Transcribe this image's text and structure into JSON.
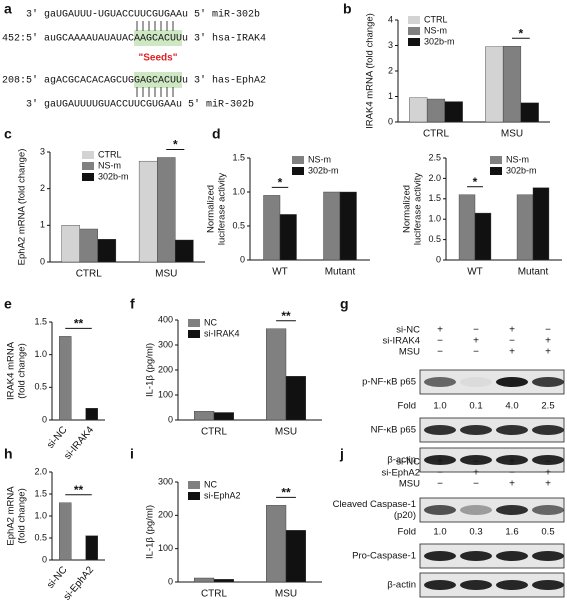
{
  "sequences": {
    "panel": "a",
    "lines": [
      "3' gaUGAUUU-UGUACCUUCGUGAAu 5' miR-302b",
      "452:5' auGCAAAAUAUAUACAAGCACUUu 3' hsa-IRAK4",
      "208:5' agACGCACACAGCUGGAGCACUUu 3' has-EphA2",
      "3' gaUGAUUUUGUACCUUCGUGAAu 5' miR-302b"
    ],
    "seed_label": "\"Seeds\""
  },
  "chart_data": [
    {
      "type": "bar",
      "panel": "b",
      "ylabel": [
        "IRAK4 mRNA (fold change)"
      ],
      "categories": [
        "CTRL",
        "MSU"
      ],
      "series": [
        {
          "name": "CTRL",
          "color": "#d3d3d3",
          "values": [
            0.95,
            2.95
          ]
        },
        {
          "name": "NS-m",
          "color": "#808080",
          "values": [
            0.9,
            2.97
          ]
        },
        {
          "name": "302b-m",
          "color": "#111111",
          "values": [
            0.8,
            0.75
          ]
        }
      ],
      "ylim": [
        0,
        4
      ],
      "yticks": [
        0,
        1,
        2,
        3,
        4
      ],
      "annotation": "*"
    },
    {
      "type": "bar",
      "panel": "c",
      "ylabel": [
        "EphA2 mRNA (fold change)"
      ],
      "categories": [
        "CTRL",
        "MSU"
      ],
      "series": [
        {
          "name": "CTRL",
          "color": "#d3d3d3",
          "values": [
            1.0,
            2.75
          ]
        },
        {
          "name": "NS-m",
          "color": "#808080",
          "values": [
            0.9,
            2.85
          ]
        },
        {
          "name": "302b-m",
          "color": "#111111",
          "values": [
            0.62,
            0.6
          ]
        }
      ],
      "ylim": [
        0,
        3
      ],
      "yticks": [
        0,
        1,
        2,
        3
      ],
      "annotation": "*"
    },
    {
      "type": "bar",
      "panel": "d",
      "ylabel": [
        "Normalized",
        "luciferase activity"
      ],
      "categories": [
        "WT",
        "Mutant"
      ],
      "series": [
        {
          "name": "NS-m",
          "color": "#808080",
          "values": [
            0.95,
            1.0
          ]
        },
        {
          "name": "302b-m",
          "color": "#111111",
          "values": [
            0.67,
            1.0
          ]
        }
      ],
      "ylim": [
        0,
        1.5
      ],
      "yticks": [
        0,
        0.5,
        {
          "value": 1,
          "label": "1.0"
        },
        1.5
      ],
      "annotation": "*"
    },
    {
      "type": "bar",
      "ylabel": [
        "Normalized",
        "luciferase activity"
      ],
      "categories": [
        "WT",
        "Mutant"
      ],
      "series": [
        {
          "name": "NS-m",
          "color": "#808080",
          "values": [
            1.6,
            1.6
          ]
        },
        {
          "name": "302b-m",
          "color": "#111111",
          "values": [
            1.15,
            1.77
          ]
        }
      ],
      "ylim": [
        0,
        2.5
      ],
      "yticks": [
        0,
        0.5,
        {
          "value": 1,
          "label": "1.0"
        },
        1.5,
        {
          "value": 2,
          "label": "2.0"
        },
        2.5
      ],
      "annotation": "*"
    },
    {
      "type": "bar",
      "panel": "e",
      "ylabel": [
        "IRAK4 mRNA",
        "(fold change)"
      ],
      "categories": [
        "si-NC",
        "si-IRAK4"
      ],
      "values": [
        1.28,
        0.18
      ],
      "colors": [
        "#808080",
        "#111111"
      ],
      "ylim": [
        0,
        1.5
      ],
      "yticks": [
        0,
        0.5,
        {
          "value": 1,
          "label": "1.0"
        },
        1.5
      ],
      "annotation": "**"
    },
    {
      "type": "bar",
      "panel": "f",
      "ylabel": [
        "IL-1β (pg/ml)"
      ],
      "categories": [
        "CTRL",
        "MSU"
      ],
      "series": [
        {
          "name": "NC",
          "color": "#808080",
          "values": [
            35,
            365
          ]
        },
        {
          "name": "si-IRAK4",
          "color": "#111111",
          "values": [
            30,
            175
          ]
        }
      ],
      "ylim": [
        0,
        400
      ],
      "yticks": [
        0,
        100,
        200,
        300,
        400
      ],
      "annotation": "**"
    },
    {
      "type": "bar",
      "panel": "h",
      "ylabel": [
        "EphA2 mRNA",
        "(fold change)"
      ],
      "categories": [
        "si-NC",
        "si-EphA2"
      ],
      "values": [
        1.3,
        0.55
      ],
      "colors": [
        "#808080",
        "#111111"
      ],
      "ylim": [
        0,
        2
      ],
      "yticks": [
        0,
        0.5,
        {
          "value": 1,
          "label": "1.0"
        },
        1.5,
        {
          "value": 2,
          "label": "2.0"
        }
      ],
      "annotation": "**"
    },
    {
      "type": "bar",
      "panel": "i",
      "ylabel": [
        "IL-1β (pg/ml)"
      ],
      "categories": [
        "CTRL",
        "MSU"
      ],
      "series": [
        {
          "name": "NC",
          "color": "#808080",
          "values": [
            12,
            230
          ]
        },
        {
          "name": "si-EphA2",
          "color": "#111111",
          "values": [
            8,
            155
          ]
        }
      ],
      "ylim": [
        0,
        300
      ],
      "yticks": [
        0,
        100,
        200,
        300
      ],
      "annotation": "**"
    }
  ],
  "blots": [
    {
      "panel": "g",
      "conditions": [
        {
          "name": "si-NC",
          "signs": [
            "+",
            "−",
            "+",
            "−"
          ]
        },
        {
          "name": "si-IRAK4",
          "signs": [
            "−",
            "+",
            "−",
            "+"
          ]
        },
        {
          "name": "MSU",
          "signs": [
            "−",
            "−",
            "+",
            "+"
          ]
        }
      ],
      "rows": [
        {
          "kind": "band",
          "label": [
            "p-NF-κB p65"
          ]
        },
        {
          "kind": "fold",
          "label": [
            "Fold"
          ],
          "values": [
            "1.0",
            "0.1",
            "4.0",
            "2.5"
          ]
        },
        {
          "kind": "band",
          "label": [
            "NF-κB p65"
          ]
        },
        {
          "kind": "band",
          "label": [
            "β-actin"
          ]
        }
      ]
    },
    {
      "panel": "j",
      "conditions": [
        {
          "name": "si-NC",
          "signs": [
            "+",
            "−",
            "+",
            "−"
          ]
        },
        {
          "name": "si-EphA2",
          "signs": [
            "−",
            "+",
            "−",
            "+"
          ]
        },
        {
          "name": "MSU",
          "signs": [
            "−",
            "−",
            "+",
            "+"
          ]
        }
      ],
      "rows": [
        {
          "kind": "band",
          "label": [
            "Cleaved Caspase-1",
            "(p20)"
          ]
        },
        {
          "kind": "fold",
          "label": [
            "Fold"
          ],
          "values": [
            "1.0",
            "0.3",
            "1.6",
            "0.5"
          ]
        },
        {
          "kind": "band",
          "label": [
            "Pro-Caspase-1"
          ]
        },
        {
          "kind": "band",
          "label": [
            "β-actin"
          ]
        }
      ]
    }
  ]
}
